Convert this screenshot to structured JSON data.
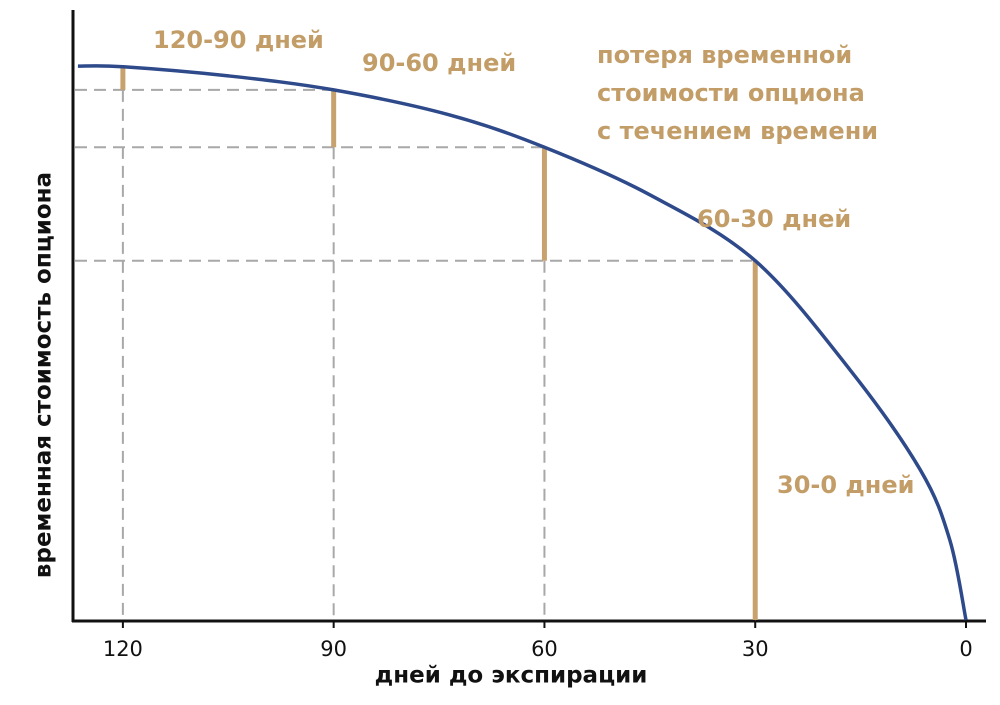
{
  "chart_data": {
    "type": "line",
    "xlabel": "дней до экспирации",
    "ylabel": "временная стоимость опциона",
    "x": [
      126.4,
      120,
      105,
      90,
      73.5,
      60,
      45,
      30,
      16.5,
      6.5,
      2.3,
      0
    ],
    "values": [
      90.8,
      90.7,
      89.2,
      86.9,
      82.8,
      77.5,
      69.7,
      58.9,
      41,
      24.6,
      13.1,
      0
    ],
    "color": "#2e4a8a",
    "bar_color": "#c8a26e",
    "xlim": [
      127.1,
      0
    ],
    "ylim": [
      0,
      100
    ],
    "xticks": [
      120,
      90,
      60,
      30,
      0
    ],
    "annotations": [
      "120-90 дней",
      "90-60 дней",
      "60-30 дней",
      "30-0 дней"
    ],
    "note_lines": [
      "потеря временной",
      "стоимости опциона",
      "с течением времени"
    ]
  }
}
